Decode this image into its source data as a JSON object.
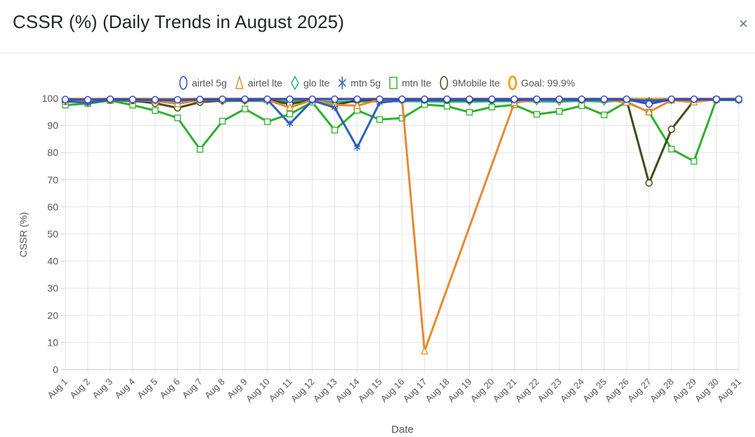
{
  "modal": {
    "title": "CSSR (%) (Daily Trends in August 2025)",
    "close_glyph": "×"
  },
  "chart_data": {
    "type": "line",
    "title": "",
    "xlabel": "Date",
    "ylabel": "CSSR (%)",
    "ylim": [
      0,
      100
    ],
    "yticks": [
      0,
      10,
      20,
      30,
      40,
      50,
      60,
      70,
      80,
      90,
      100
    ],
    "grid": true,
    "legend_position": "top-center",
    "categories": [
      "Aug 1",
      "Aug 2",
      "Aug 3",
      "Aug 4",
      "Aug 5",
      "Aug 6",
      "Aug 7",
      "Aug 8",
      "Aug 9",
      "Aug 10",
      "Aug 11",
      "Aug 12",
      "Aug 13",
      "Aug 14",
      "Aug 15",
      "Aug 16",
      "Aug 17",
      "Aug 18",
      "Aug 19",
      "Aug 20",
      "Aug 21",
      "Aug 22",
      "Aug 23",
      "Aug 24",
      "Aug 25",
      "Aug 26",
      "Aug 27",
      "Aug 28",
      "Aug 29",
      "Aug 30",
      "Aug 31"
    ],
    "series": [
      {
        "name": "Goal: 99.9%",
        "color": "#f5a623",
        "marker": "goal",
        "goal": true,
        "values": [
          99.9,
          99.9,
          99.9,
          99.9,
          99.9,
          99.9,
          99.9,
          99.9,
          99.9,
          99.9,
          99.9,
          99.9,
          99.9,
          99.9,
          99.9,
          99.9,
          99.9,
          99.9,
          99.9,
          99.9,
          99.9,
          99.9,
          99.9,
          99.9,
          99.9,
          99.9,
          99.9,
          99.9,
          99.9,
          99.9,
          99.9
        ]
      },
      {
        "name": "glo lte",
        "color": "#20b07a",
        "marker": "diamond",
        "values": [
          98.8,
          98.6,
          99.4,
          98.9,
          98.7,
          98.9,
          99.1,
          99.0,
          99.1,
          99.0,
          98.9,
          99.0,
          98.7,
          98.8,
          98.9,
          99.0,
          98.9,
          98.8,
          98.8,
          98.9,
          99.0,
          98.9,
          98.8,
          99.1,
          98.8,
          99.3,
          98.6,
          99.3,
          99.2,
          99.4,
          99.3
        ]
      },
      {
        "name": "mtn lte",
        "color": "#2db02d",
        "marker": "square",
        "values": [
          97.5,
          98.1,
          99.2,
          97.5,
          95.5,
          92.8,
          81.2,
          91.6,
          96.1,
          91.4,
          94.2,
          98.6,
          88.3,
          95.6,
          92.2,
          92.7,
          97.7,
          97.1,
          94.9,
          96.8,
          97.6,
          94.1,
          95.2,
          97.3,
          93.9,
          98.7,
          94.9,
          81.3,
          76.8,
          99.6,
          99.5
        ]
      },
      {
        "name": "9Mobile lte",
        "color": "#3c4f16",
        "marker": "circle-open",
        "values": [
          98.9,
          98.7,
          99.4,
          99.2,
          98.2,
          96.5,
          98.6,
          99.2,
          99.3,
          99.4,
          97.9,
          99.4,
          97.5,
          99.3,
          99.4,
          99.5,
          99.4,
          99.4,
          99.4,
          99.4,
          99.3,
          99.5,
          99.5,
          99.4,
          99.5,
          99.4,
          68.8,
          88.6,
          99.2,
          99.5,
          99.6
        ]
      },
      {
        "name": "airtel lte",
        "color": "#e88a2e",
        "marker": "triangle",
        "values": [
          99.0,
          98.9,
          99.5,
          99.4,
          99.0,
          98.0,
          99.3,
          99.4,
          99.5,
          99.4,
          96.6,
          99.4,
          97.6,
          97.3,
          99.5,
          99.6,
          6.8,
          null,
          null,
          null,
          98.4,
          99.5,
          99.5,
          99.5,
          99.5,
          98.5,
          95.0,
          99.3,
          98.6,
          99.6,
          99.7
        ]
      },
      {
        "name": "mtn 5g",
        "color": "#2a62b8",
        "marker": "star",
        "values": [
          99.0,
          98.3,
          99.6,
          99.5,
          99.3,
          99.4,
          99.5,
          99.4,
          99.5,
          99.5,
          90.6,
          99.2,
          96.6,
          81.9,
          98.4,
          99.3,
          99.4,
          99.5,
          99.5,
          99.5,
          99.4,
          99.5,
          99.5,
          99.5,
          99.5,
          99.5,
          99.2,
          99.5,
          99.5,
          99.6,
          99.6
        ]
      },
      {
        "name": "airtel 5g",
        "color": "#3348d6",
        "marker": "circle",
        "values": [
          99.6,
          99.5,
          99.7,
          99.6,
          99.5,
          99.5,
          99.6,
          99.7,
          99.7,
          99.7,
          99.7,
          99.7,
          99.7,
          99.7,
          99.7,
          99.7,
          99.7,
          99.7,
          99.7,
          99.7,
          99.7,
          99.7,
          99.7,
          99.7,
          99.7,
          99.7,
          97.9,
          99.7,
          99.7,
          99.7,
          99.7
        ]
      }
    ],
    "legend_order": [
      "airtel 5g",
      "airtel lte",
      "glo lte",
      "mtn 5g",
      "mtn lte",
      "9Mobile lte",
      "Goal: 99.9%"
    ]
  }
}
